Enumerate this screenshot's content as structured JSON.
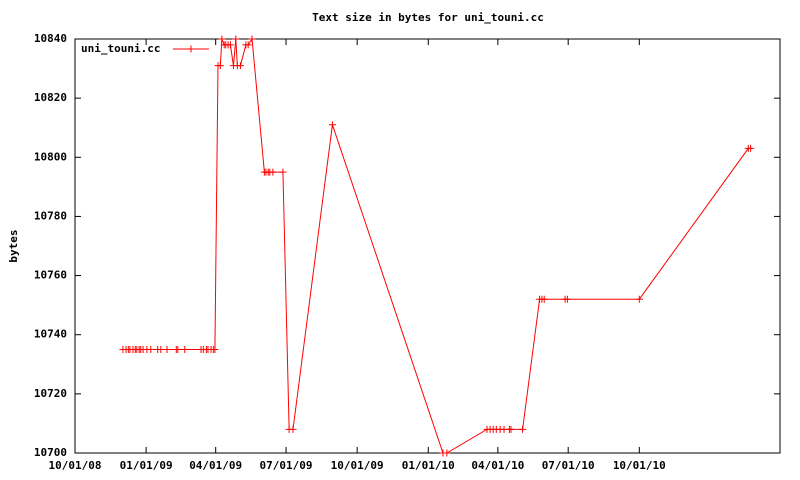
{
  "chart_data": {
    "type": "line",
    "title": "Text size in bytes for uni_touni.cc",
    "y_label": "bytes",
    "legend": "top-left",
    "xlim": [
      "2008-10-01",
      "2011-04-01"
    ],
    "xticks": [
      {
        "value": "2008-10-01",
        "label": "10/01/08"
      },
      {
        "value": "2009-01-01",
        "label": "01/01/09"
      },
      {
        "value": "2009-04-01",
        "label": "04/01/09"
      },
      {
        "value": "2009-07-01",
        "label": "07/01/09"
      },
      {
        "value": "2009-10-01",
        "label": "10/01/09"
      },
      {
        "value": "2010-01-01",
        "label": "01/01/10"
      },
      {
        "value": "2010-04-01",
        "label": "04/01/10"
      },
      {
        "value": "2010-07-01",
        "label": "07/01/10"
      },
      {
        "value": "2010-10-01",
        "label": "10/01/10"
      }
    ],
    "ylim": [
      10700,
      10840
    ],
    "yticks": [
      10700,
      10720,
      10740,
      10760,
      10780,
      10800,
      10820,
      10840
    ],
    "x": [
      "2008-12-02",
      "2008-12-06",
      "2008-12-09",
      "2008-12-11",
      "2008-12-15",
      "2008-12-18",
      "2008-12-20",
      "2008-12-23",
      "2008-12-25",
      "2008-12-28",
      "2009-01-02",
      "2009-01-07",
      "2009-01-16",
      "2009-01-20",
      "2009-01-28",
      "2009-02-09",
      "2009-02-11",
      "2009-02-20",
      "2009-03-13",
      "2009-03-16",
      "2009-03-20",
      "2009-03-22",
      "2009-03-26",
      "2009-03-29",
      "2009-03-31",
      "2009-04-04",
      "2009-04-07",
      "2009-04-09",
      "2009-04-12",
      "2009-04-14",
      "2009-04-17",
      "2009-04-20",
      "2009-04-24",
      "2009-04-27",
      "2009-04-29",
      "2009-05-03",
      "2009-05-10",
      "2009-05-13",
      "2009-05-18",
      "2009-06-03",
      "2009-06-05",
      "2009-06-08",
      "2009-06-10",
      "2009-06-14",
      "2009-06-27",
      "2009-07-05",
      "2009-07-10",
      "2009-08-30",
      "2010-01-20",
      "2010-01-25",
      "2010-03-18",
      "2010-03-22",
      "2010-03-26",
      "2010-03-30",
      "2010-04-04",
      "2010-04-09",
      "2010-04-16",
      "2010-04-18",
      "2010-05-03",
      "2010-05-25",
      "2010-05-28",
      "2010-05-31",
      "2010-06-27",
      "2010-06-30",
      "2010-10-01",
      "2011-02-19",
      "2011-02-22"
    ],
    "series": [
      {
        "name": "uni_touni.cc",
        "color": "#ff0000",
        "values": [
          10735,
          10735,
          10735,
          10735,
          10735,
          10735,
          10735,
          10735,
          10735,
          10735,
          10735,
          10735,
          10735,
          10735,
          10735,
          10735,
          10735,
          10735,
          10735,
          10735,
          10735,
          10735,
          10735,
          10735,
          10735,
          10831,
          10831,
          10840,
          10838,
          10838,
          10838,
          10838,
          10831,
          10840,
          10831,
          10831,
          10838,
          10838,
          10840,
          10795,
          10795,
          10795,
          10795,
          10795,
          10795,
          10708,
          10708,
          10811,
          10700,
          10700,
          10708,
          10708,
          10708,
          10708,
          10708,
          10708,
          10708,
          10708,
          10708,
          10752,
          10752,
          10752,
          10752,
          10752,
          10752,
          10803,
          10803
        ]
      }
    ]
  }
}
